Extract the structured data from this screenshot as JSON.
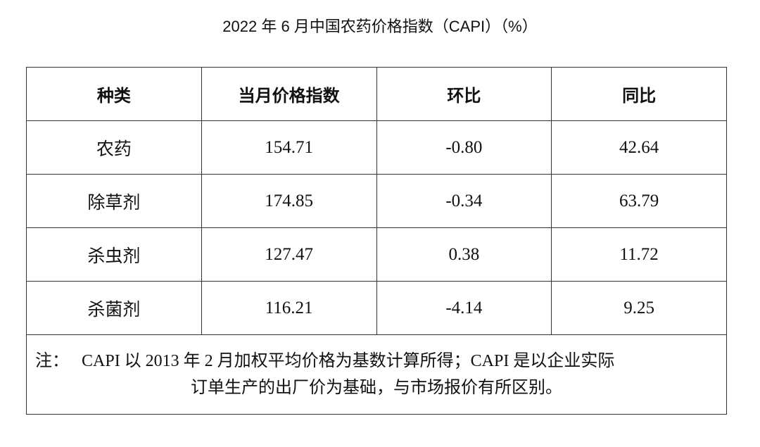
{
  "header": {
    "title": "2022 年 6 月中国农药价格指数（CAPI）（%）"
  },
  "table": {
    "columns": [
      "种类",
      "当月价格指数",
      "环比",
      "同比"
    ],
    "rows": [
      [
        "农药",
        "154.71",
        "-0.80",
        "42.64"
      ],
      [
        "除草剂",
        "174.85",
        "-0.34",
        "63.79"
      ],
      [
        "杀虫剂",
        "127.47",
        "0.38",
        "11.72"
      ],
      [
        "杀菌剂",
        "116.21",
        "-4.14",
        "9.25"
      ]
    ],
    "note": {
      "label": "注：",
      "lines": [
        "CAPI 以 2013 年 2 月加权平均价格为基数计算所得；CAPI 是以企业实际",
        "订单生产的出厂价为基础，与市场报价有所区别。"
      ]
    }
  }
}
